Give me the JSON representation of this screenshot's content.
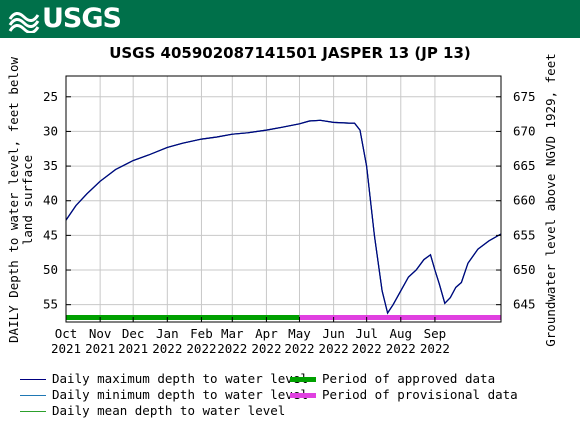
{
  "banner": {
    "logo_text": "USGS",
    "color": "#00704a"
  },
  "chart_data": {
    "type": "line",
    "title": "USGS 405902087141501 JASPER 13 (JP 13)",
    "ylabel_left": "DAILY Depth to water level, feet below land surface",
    "ylabel_right": "Groundwater level above NGVD 1929, feet",
    "ylim": [
      57.5,
      22.0
    ],
    "yticks": [
      25,
      30,
      35,
      40,
      45,
      50,
      55
    ],
    "y2ticks": [
      675,
      670,
      665,
      660,
      655,
      650,
      645
    ],
    "y2_datum_offset": 700,
    "xlim": [
      "2021-10-01",
      "2022-10-31"
    ],
    "xticks": [
      {
        "date": "2021-10-01",
        "label": "Oct",
        "year": "2021"
      },
      {
        "date": "2021-11-01",
        "label": "Nov",
        "year": "2021"
      },
      {
        "date": "2021-12-01",
        "label": "Dec",
        "year": "2021"
      },
      {
        "date": "2022-01-01",
        "label": "Jan",
        "year": "2022"
      },
      {
        "date": "2022-02-01",
        "label": "Feb",
        "year": "2022"
      },
      {
        "date": "2022-03-01",
        "label": "Mar",
        "year": "2022"
      },
      {
        "date": "2022-04-01",
        "label": "Apr",
        "year": "2022"
      },
      {
        "date": "2022-05-01",
        "label": "May",
        "year": "2022"
      },
      {
        "date": "2022-06-01",
        "label": "Jun",
        "year": "2022"
      },
      {
        "date": "2022-07-01",
        "label": "Jul",
        "year": "2022"
      },
      {
        "date": "2022-08-01",
        "label": "Aug",
        "year": "2022"
      },
      {
        "date": "2022-09-01",
        "label": "Sep",
        "year": "2022"
      }
    ],
    "grid": true,
    "series": [
      {
        "name": "Daily maximum depth to water level",
        "color": "#000080",
        "x": [
          "2021-10-01",
          "2021-10-10",
          "2021-10-20",
          "2021-11-01",
          "2021-11-15",
          "2021-12-01",
          "2021-12-15",
          "2022-01-01",
          "2022-01-15",
          "2022-02-01",
          "2022-02-15",
          "2022-03-01",
          "2022-03-15",
          "2022-04-01",
          "2022-04-15",
          "2022-05-01",
          "2022-05-10",
          "2022-05-20",
          "2022-06-01",
          "2022-06-15",
          "2022-06-20",
          "2022-06-25",
          "2022-07-01",
          "2022-07-08",
          "2022-07-15",
          "2022-07-20",
          "2022-07-25",
          "2022-08-01",
          "2022-08-08",
          "2022-08-15",
          "2022-08-22",
          "2022-08-28",
          "2022-09-01",
          "2022-09-05",
          "2022-09-10",
          "2022-09-15",
          "2022-09-20",
          "2022-09-25",
          "2022-10-01",
          "2022-10-10",
          "2022-10-20",
          "2022-10-31"
        ],
        "y": [
          42.8,
          40.7,
          39.0,
          37.2,
          35.5,
          34.2,
          33.4,
          32.3,
          31.7,
          31.1,
          30.8,
          30.4,
          30.2,
          29.8,
          29.4,
          28.9,
          28.5,
          28.4,
          28.7,
          28.8,
          28.8,
          29.8,
          35.0,
          45.0,
          53.0,
          56.2,
          55.0,
          53.0,
          51.0,
          50.0,
          48.5,
          47.8,
          50.0,
          52.0,
          54.8,
          54.0,
          52.5,
          51.8,
          49.0,
          47.0,
          45.8,
          44.8
        ]
      },
      {
        "name": "Daily minimum depth to water level",
        "color": "#1f78b4",
        "x": [
          "2021-10-01",
          "2021-10-10",
          "2021-10-20",
          "2021-11-01",
          "2021-11-15",
          "2021-12-01",
          "2021-12-15",
          "2022-01-01",
          "2022-01-15",
          "2022-02-01",
          "2022-02-15",
          "2022-03-01",
          "2022-03-15",
          "2022-04-01",
          "2022-04-15",
          "2022-05-01",
          "2022-05-10",
          "2022-05-20",
          "2022-06-01",
          "2022-06-15",
          "2022-06-20",
          "2022-06-25",
          "2022-07-01",
          "2022-07-08",
          "2022-07-15",
          "2022-07-20",
          "2022-07-25",
          "2022-08-01",
          "2022-08-08",
          "2022-08-15",
          "2022-08-22",
          "2022-08-28",
          "2022-09-01",
          "2022-09-05",
          "2022-09-10",
          "2022-09-15",
          "2022-09-20",
          "2022-09-25",
          "2022-10-01",
          "2022-10-10",
          "2022-10-20",
          "2022-10-31"
        ],
        "y": [
          42.8,
          40.7,
          39.0,
          37.2,
          35.5,
          34.2,
          33.4,
          32.3,
          31.7,
          31.1,
          30.8,
          30.4,
          30.2,
          29.8,
          29.4,
          28.9,
          28.5,
          28.4,
          28.7,
          28.8,
          28.8,
          29.8,
          35.0,
          45.0,
          53.0,
          56.2,
          55.0,
          53.0,
          51.0,
          50.0,
          48.5,
          47.8,
          50.0,
          52.0,
          54.8,
          54.0,
          52.5,
          51.8,
          49.0,
          47.0,
          45.8,
          44.8
        ]
      },
      {
        "name": "Daily mean depth to water level",
        "color": "#2ca02c",
        "x": [
          "2021-10-01",
          "2021-10-10",
          "2021-10-20",
          "2021-11-01",
          "2021-11-15",
          "2021-12-01",
          "2021-12-15",
          "2022-01-01",
          "2022-01-15",
          "2022-02-01",
          "2022-02-15",
          "2022-03-01",
          "2022-03-15",
          "2022-04-01",
          "2022-04-15",
          "2022-05-01",
          "2022-05-10",
          "2022-05-20",
          "2022-06-01",
          "2022-06-15",
          "2022-06-20",
          "2022-06-25",
          "2022-07-01",
          "2022-07-08",
          "2022-07-15",
          "2022-07-20",
          "2022-07-25",
          "2022-08-01",
          "2022-08-08",
          "2022-08-15",
          "2022-08-22",
          "2022-08-28",
          "2022-09-01",
          "2022-09-05",
          "2022-09-10",
          "2022-09-15",
          "2022-09-20",
          "2022-09-25",
          "2022-10-01",
          "2022-10-10",
          "2022-10-20",
          "2022-10-31"
        ],
        "y": [
          42.8,
          40.7,
          39.0,
          37.2,
          35.5,
          34.2,
          33.4,
          32.3,
          31.7,
          31.1,
          30.8,
          30.4,
          30.2,
          29.8,
          29.4,
          28.9,
          28.5,
          28.4,
          28.7,
          28.8,
          28.8,
          29.8,
          35.0,
          45.0,
          53.0,
          56.2,
          55.0,
          53.0,
          51.0,
          50.0,
          48.5,
          47.8,
          50.0,
          52.0,
          54.8,
          54.0,
          52.5,
          51.8,
          49.0,
          47.0,
          45.8,
          44.8
        ]
      }
    ],
    "periods": [
      {
        "name": "Period of approved data",
        "color": "#00a000",
        "start": "2021-10-01",
        "end": "2022-05-01"
      },
      {
        "name": "Period of provisional data",
        "color": "#e040e0",
        "start": "2022-05-01",
        "end": "2022-10-31"
      }
    ]
  }
}
